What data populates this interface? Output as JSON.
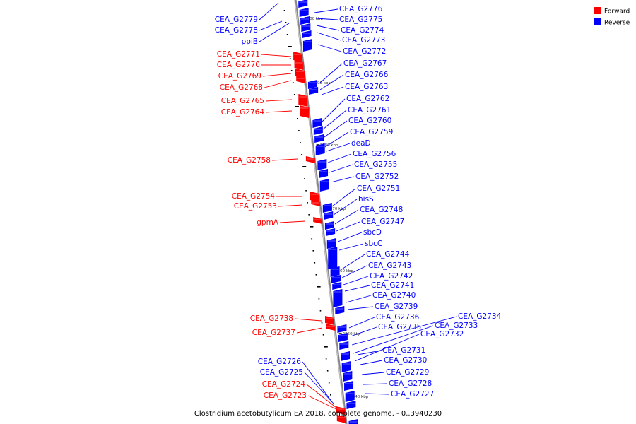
{
  "colors": {
    "forward": "#ff0000",
    "reverse": "#0000ff",
    "axis": "#888888",
    "tick": "#000000"
  },
  "legend": {
    "forward_label": "Forward",
    "reverse_label": "Reverse"
  },
  "caption": "Clostridium acetobutylicum EA 2018, complete genome. - 0..3940230",
  "kbp_labels": [
    "2900 kbp",
    "2890 kbp",
    "2880 kbp",
    "2870 kbp",
    "2860 kbp",
    "2850 kbp",
    "2840 kbp"
  ],
  "left_labels": [
    {
      "text": "CEA_G2779",
      "strand": "reverse"
    },
    {
      "text": "CEA_G2778",
      "strand": "reverse"
    },
    {
      "text": "ppiB",
      "strand": "reverse"
    },
    {
      "text": "CEA_G2771",
      "strand": "forward"
    },
    {
      "text": "CEA_G2770",
      "strand": "forward"
    },
    {
      "text": "CEA_G2769",
      "strand": "forward"
    },
    {
      "text": "CEA_G2768",
      "strand": "forward"
    },
    {
      "text": "CEA_G2765",
      "strand": "forward"
    },
    {
      "text": "CEA_G2764",
      "strand": "forward"
    },
    {
      "text": "CEA_G2758",
      "strand": "forward"
    },
    {
      "text": "CEA_G2754",
      "strand": "forward"
    },
    {
      "text": "CEA_G2753",
      "strand": "forward"
    },
    {
      "text": "gpmA",
      "strand": "forward"
    },
    {
      "text": "CEA_G2738",
      "strand": "forward"
    },
    {
      "text": "CEA_G2737",
      "strand": "forward"
    },
    {
      "text": "CEA_G2726",
      "strand": "reverse"
    },
    {
      "text": "CEA_G2725",
      "strand": "reverse"
    },
    {
      "text": "CEA_G2724",
      "strand": "forward"
    },
    {
      "text": "CEA_G2723",
      "strand": "forward"
    }
  ],
  "right_labels": [
    {
      "text": "CEA_G2776",
      "strand": "reverse"
    },
    {
      "text": "CEA_G2775",
      "strand": "reverse"
    },
    {
      "text": "CEA_G2774",
      "strand": "reverse"
    },
    {
      "text": "CEA_G2773",
      "strand": "reverse"
    },
    {
      "text": "CEA_G2772",
      "strand": "reverse"
    },
    {
      "text": "CEA_G2767",
      "strand": "reverse"
    },
    {
      "text": "CEA_G2766",
      "strand": "reverse"
    },
    {
      "text": "CEA_G2763",
      "strand": "reverse"
    },
    {
      "text": "CEA_G2762",
      "strand": "reverse"
    },
    {
      "text": "CEA_G2761",
      "strand": "reverse"
    },
    {
      "text": "CEA_G2760",
      "strand": "reverse"
    },
    {
      "text": "CEA_G2759",
      "strand": "reverse"
    },
    {
      "text": "deaD",
      "strand": "reverse"
    },
    {
      "text": "CEA_G2756",
      "strand": "reverse"
    },
    {
      "text": "CEA_G2755",
      "strand": "reverse"
    },
    {
      "text": "CEA_G2752",
      "strand": "reverse"
    },
    {
      "text": "CEA_G2751",
      "strand": "reverse"
    },
    {
      "text": "hisS",
      "strand": "reverse"
    },
    {
      "text": "CEA_G2748",
      "strand": "reverse"
    },
    {
      "text": "CEA_G2747",
      "strand": "reverse"
    },
    {
      "text": "sbcD",
      "strand": "reverse"
    },
    {
      "text": "sbcC",
      "strand": "reverse"
    },
    {
      "text": "CEA_G2744",
      "strand": "reverse"
    },
    {
      "text": "CEA_G2743",
      "strand": "reverse"
    },
    {
      "text": "CEA_G2742",
      "strand": "reverse"
    },
    {
      "text": "CEA_G2741",
      "strand": "reverse"
    },
    {
      "text": "CEA_G2740",
      "strand": "reverse"
    },
    {
      "text": "CEA_G2739",
      "strand": "reverse"
    },
    {
      "text": "CEA_G2736",
      "strand": "reverse"
    },
    {
      "text": "CEA_G2735",
      "strand": "reverse"
    },
    {
      "text": "CEA_G2734",
      "strand": "reverse"
    },
    {
      "text": "CEA_G2733",
      "strand": "reverse"
    },
    {
      "text": "CEA_G2732",
      "strand": "reverse"
    },
    {
      "text": "CEA_G2731",
      "strand": "reverse"
    },
    {
      "text": "CEA_G2730",
      "strand": "reverse"
    },
    {
      "text": "CEA_G2729",
      "strand": "reverse"
    },
    {
      "text": "CEA_G2728",
      "strand": "reverse"
    },
    {
      "text": "CEA_G2727",
      "strand": "reverse"
    }
  ]
}
